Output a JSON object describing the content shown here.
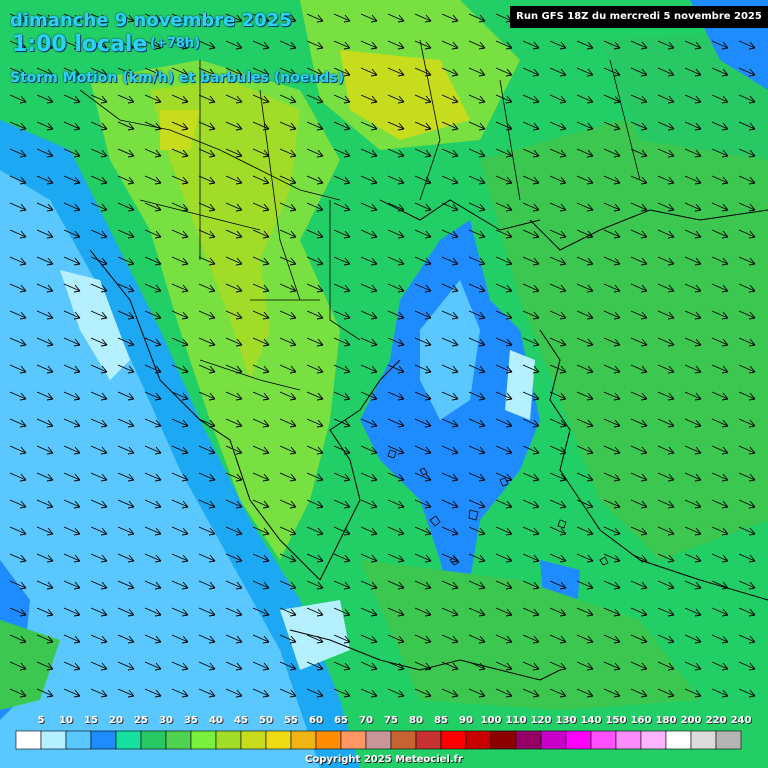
{
  "header": {
    "date": "dimanche 9 novembre 2025",
    "time": "1:00 locale",
    "lead": "(+78h)",
    "parameter": "Storm Motion (km/h) et barbules (noeuds)",
    "run": "Run GFS 18Z du mercredi 5 novembre 2025"
  },
  "legend": {
    "ticks": [
      "5",
      "10",
      "15",
      "20",
      "25",
      "30",
      "35",
      "40",
      "45",
      "50",
      "55",
      "60",
      "65",
      "70",
      "75",
      "80",
      "85",
      "90",
      "100",
      "110",
      "120",
      "130",
      "140",
      "150",
      "160",
      "180",
      "200",
      "220",
      "240"
    ],
    "colors": [
      "#ffffff",
      "#b4f0ff",
      "#5ac8ff",
      "#1e8cff",
      "#14e0a0",
      "#28c864",
      "#50d250",
      "#78f03c",
      "#a0dc28",
      "#c8dc1e",
      "#f0dc14",
      "#f0b414",
      "#ff8c00",
      "#ff9664",
      "#c89696",
      "#c86432",
      "#c83232",
      "#ff0000",
      "#c80000",
      "#8c0000",
      "#960064",
      "#c800c8",
      "#ff00ff",
      "#ff50ff",
      "#ff8cff",
      "#ffb4ff",
      "#ffffff",
      "#dcdcdc",
      "#b4b4b4"
    ]
  },
  "wind": {
    "direction": "northwesterly flow (arrows pointing southeast)"
  },
  "copyright": "Copyright 2025 Meteociel.fr"
}
